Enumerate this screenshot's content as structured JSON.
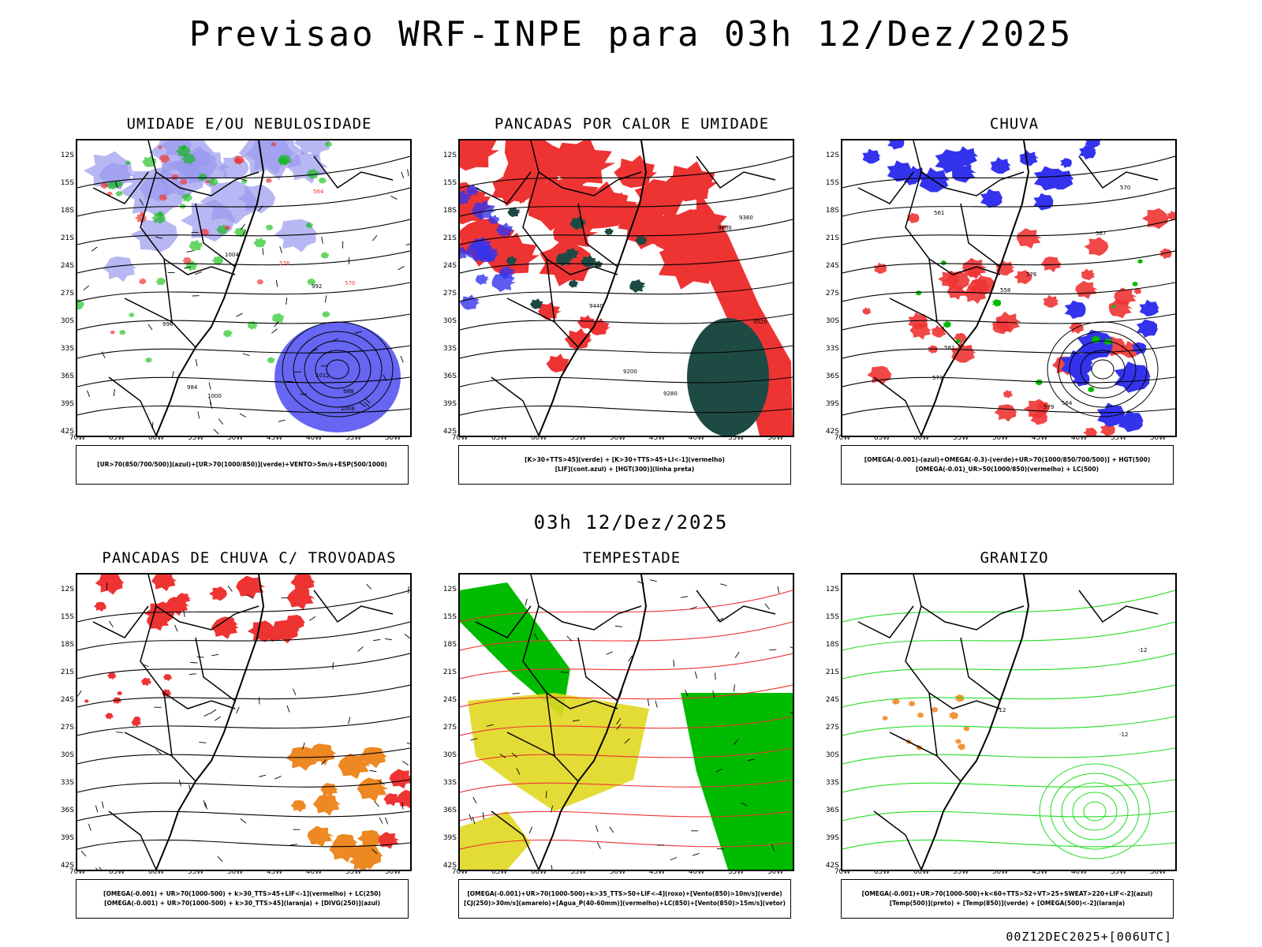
{
  "title": "Previsao WRF-INPE  para 03h 12/Dez/2025",
  "subtitle": "03h 12/Dez/2025",
  "footer": "00Z12DEC2025+[006UTC]",
  "axes": {
    "lat_labels": [
      "12S",
      "15S",
      "18S",
      "21S",
      "24S",
      "27S",
      "30S",
      "33S",
      "36S",
      "39S",
      "42S"
    ],
    "lon_labels": [
      "70W",
      "65W",
      "60W",
      "55W",
      "50W",
      "45W",
      "40W",
      "35W",
      "30W"
    ]
  },
  "colors": {
    "blue": "#3333ee",
    "lightblue": "#9999ee",
    "green": "#00bb00",
    "lightgreen": "#22dd22",
    "red": "#ee3333",
    "darkgreen": "#1e4a44",
    "orange": "#ee8822",
    "yellow": "#e0d820"
  },
  "panels": [
    {
      "id": "umidade",
      "title": "UMIDADE E/OU NEBULOSIDADE",
      "legend": [
        "[UR>70(850/700/500)](azul)+[UR>70(1000/850)](verde)+VENTO>5m/s+ESP(500/1000)"
      ],
      "contour_labels": [
        "1012",
        "1008",
        "1004",
        "1000",
        "996",
        "992",
        "988",
        "984",
        "576",
        "570",
        "564"
      ]
    },
    {
      "id": "pancadas_calor",
      "title": "PANCADAS POR CALOR E UMIDADE",
      "legend": [
        "[K>30+TTS>45](verde) + [K>30+TTS>45+LI<-1](vermelho)",
        "[LIF](cont.azul) + [HGT(300)](linha preta)"
      ],
      "contour_labels": [
        "9600",
        "9520",
        "9440",
        "9360",
        "9280",
        "9200"
      ]
    },
    {
      "id": "chuva",
      "title": "CHUVA",
      "legend": [
        "[OMEGA(-0.001)-(azul)+OMEGA(-0.3)-(verde)+UR>70(1000/850/700/500)] + HGT(500)",
        "[OMEGA(-0.01)_UR>50(1000/850)(vermelho) + LC(500)"
      ],
      "contour_labels": [
        "582",
        "579",
        "576",
        "573",
        "570",
        "567",
        "564",
        "561",
        "558"
      ]
    },
    {
      "id": "trovoadas",
      "title": "PANCADAS DE CHUVA C/ TROVOADAS",
      "legend": [
        "[OMEGA(-0.001) + UR>70(1000-500) + k>30_TTS>45+LIF<-1](vermelho) + LC(250)",
        "[OMEGA(-0.001) + UR>70(1000-500) + k>30_TTS>45](laranja) + [DIVG(250)](azul)"
      ],
      "contour_labels": []
    },
    {
      "id": "tempestade",
      "title": "TEMPESTADE",
      "legend": [
        "[OMEGA(-0.001)+UR>70(1000-500)+k>35_TTS>50+LIF<-4](roxo)+[Vento(850)>10m/s](verde)",
        "[CJ(250)>30m/s](amarelo)+[Agua_P(40-60mm)](vermelho)+LC(850)+[Vento(850)>15m/s](vetor)"
      ],
      "contour_labels": []
    },
    {
      "id": "granizo",
      "title": "GRANIZO",
      "legend": [
        "[OMEGA(-0.001)+UR>70(1000-500)+k<60+TTS>52+VT>25+SWEAT>220+LIF<-2](azul)",
        "[Temp(500)](preto) + [Temp(850)](verde) + [OMEGA(500)<-2](laranja)"
      ],
      "contour_labels": [
        "-12",
        "-12",
        "-12"
      ]
    }
  ]
}
